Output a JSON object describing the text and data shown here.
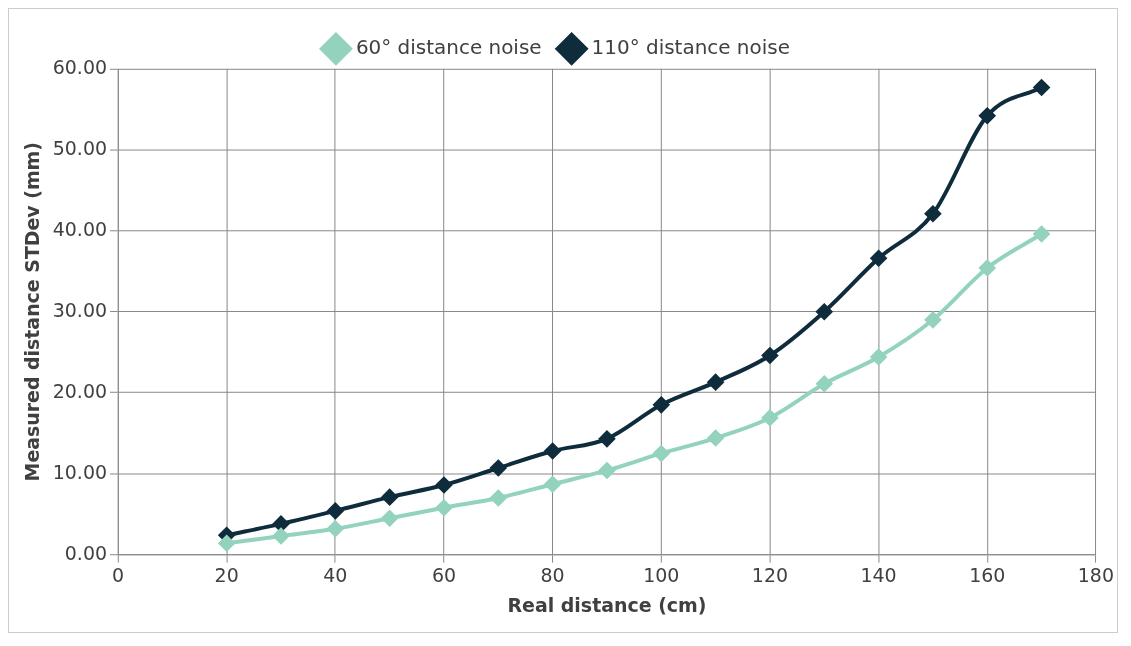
{
  "chart_data": {
    "type": "line",
    "xlabel": "Real distance (cm)",
    "ylabel": "Measured distance STDev (mm)",
    "x": [
      20,
      30,
      40,
      50,
      60,
      70,
      80,
      90,
      100,
      110,
      120,
      130,
      140,
      150,
      160,
      170
    ],
    "series": [
      {
        "name": "60° distance noise",
        "color": "#93d3bd",
        "values": [
          1.4,
          2.3,
          3.2,
          4.5,
          5.8,
          7.0,
          8.7,
          10.4,
          12.5,
          14.4,
          16.9,
          21.1,
          24.4,
          29.0,
          35.4,
          39.6
        ]
      },
      {
        "name": "110° distance noise",
        "color": "#0f2c3d",
        "values": [
          2.4,
          3.8,
          5.4,
          7.1,
          8.6,
          10.7,
          12.8,
          14.3,
          18.5,
          21.3,
          24.6,
          30.0,
          36.6,
          42.1,
          54.2,
          57.7
        ]
      }
    ],
    "xlim": [
      0,
      180
    ],
    "xticks": [
      0,
      20,
      40,
      60,
      80,
      100,
      120,
      140,
      160,
      180
    ],
    "ylim": [
      0,
      60
    ],
    "yticks": [
      {
        "value": 0,
        "label": "0.00"
      },
      {
        "value": 10,
        "label": "10.00"
      },
      {
        "value": 20,
        "label": "20.00"
      },
      {
        "value": 30,
        "label": "30.00"
      },
      {
        "value": 40,
        "label": "40.00"
      },
      {
        "value": 50,
        "label": "50.00"
      },
      {
        "value": 60,
        "label": "60.00"
      }
    ],
    "grid": true,
    "legend": "top",
    "marker": "diamond",
    "line_style": "solid"
  }
}
